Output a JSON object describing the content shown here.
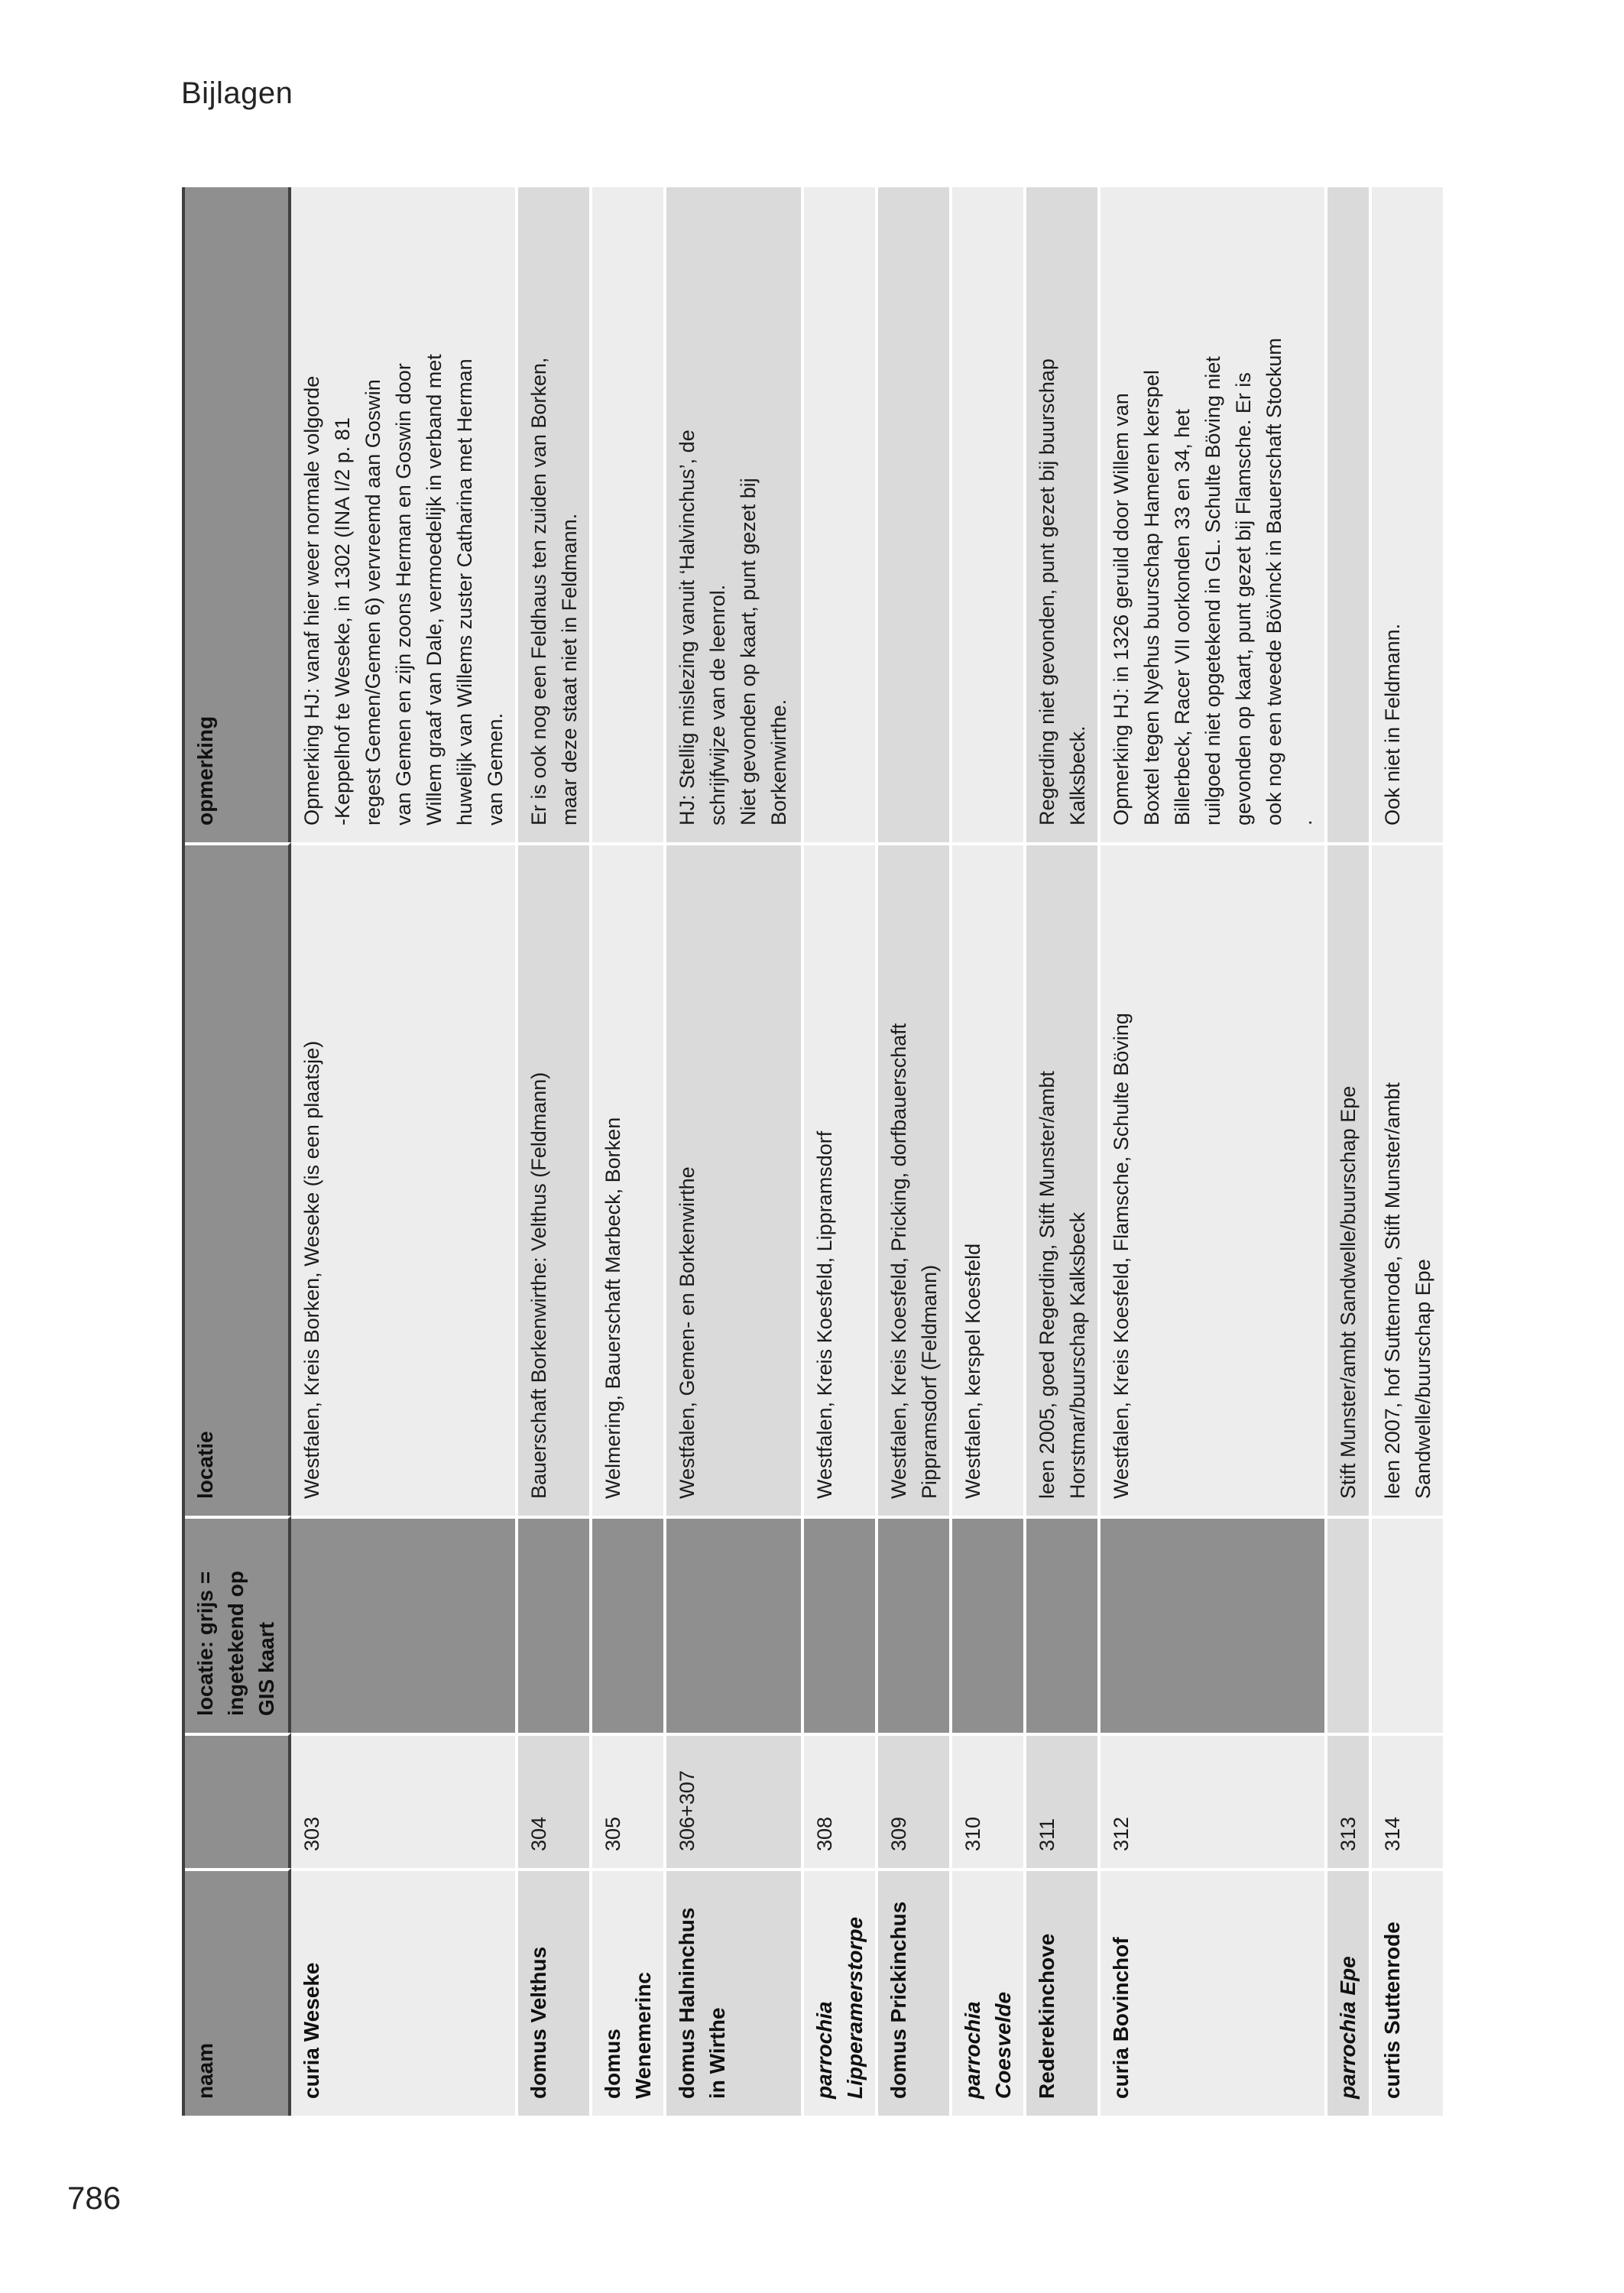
{
  "page": {
    "running_header": "Bijlagen",
    "page_number": "786"
  },
  "colors": {
    "header_and_gis_gray": "#8f8f8f",
    "naam_column_gray": "#bababa",
    "row_tint_light": "#ededed",
    "row_tint_dark": "#dadada",
    "rule_dark": "#3f3f3f"
  },
  "table": {
    "columns": {
      "naam": "naam",
      "nr": "",
      "gis": "locatie: grijs =\ningetekend op\nGIS kaart",
      "locatie": "locatie",
      "opmerking": "opmerking"
    },
    "rows": [
      {
        "naam": "curia Weseke",
        "naam_italic": false,
        "nr": "303",
        "gis_grijs": true,
        "locatie": "Westfalen, Kreis Borken, Weseke (is een plaatsje)",
        "opmerking": "Opmerking HJ: vanaf hier weer normale volgorde\n-Keppelhof te Weseke, in 1302 (INA I/2 p. 81\nregest Gemen/Gemen 6) vervreemd aan Goswin\nvan Gemen en zijn zoons Herman en Goswin door\nWillem graaf van Dale, vermoedelijk in verband met\nhuwelijk van Willems zuster Catharina met Herman\nvan Gemen."
      },
      {
        "naam": "domus Velthus",
        "naam_italic": false,
        "nr": "304",
        "gis_grijs": true,
        "locatie": "Bauerschaft Borkenwirthe: Velthus (Feldmann)",
        "opmerking": "Er is ook nog een Feldhaus ten zuiden van Borken,\nmaar deze staat niet in Feldmann."
      },
      {
        "naam": "domus\nWenemerinc",
        "naam_italic": false,
        "nr": "305",
        "gis_grijs": true,
        "locatie": "Welmering, Bauerschaft Marbeck, Borken",
        "opmerking": ""
      },
      {
        "naam": "domus Halninchus\nin Wirthe",
        "naam_italic": false,
        "nr": "306+307",
        "gis_grijs": true,
        "locatie": "Westfalen, Gemen- en Borkenwirthe",
        "opmerking": "HJ: Stellig mislezing vanuit ‘Halvinchus’, de\nschrijfwijze van de leenrol.\nNiet gevonden op kaart, punt gezet bij\nBorkenwirthe."
      },
      {
        "naam": "parrochia\nLipperamerstorpe",
        "naam_italic": true,
        "nr": "308",
        "gis_grijs": true,
        "locatie": "Westfalen, Kreis Koesfeld, Lippramsdorf",
        "opmerking": ""
      },
      {
        "naam": "domus Prickinchus",
        "naam_italic": false,
        "nr": "309",
        "gis_grijs": true,
        "locatie": "Westfalen, Kreis Koesfeld, Pricking, dorfbauerschaft\nPippramsdorf (Feldmann)",
        "opmerking": ""
      },
      {
        "naam": "parrochia\nCoesvelde",
        "naam_italic": true,
        "nr": "310",
        "gis_grijs": true,
        "locatie": "Westfalen, kerspel Koesfeld",
        "opmerking": ""
      },
      {
        "naam": "Rederekinchove",
        "naam_italic": false,
        "nr": "311",
        "gis_grijs": true,
        "locatie": "leen 2005, goed Regerding, Stift Munster/ambt\nHorstmar/buurschap Kalksbeck",
        "opmerking": "Regerding niet gevonden, punt gezet bij buurschap\nKalksbeck."
      },
      {
        "naam": "curia Bovinchof",
        "naam_italic": false,
        "nr": "312",
        "gis_grijs": true,
        "locatie": "Westfalen, Kreis Koesfeld, Flamsche, Schulte Böving",
        "opmerking": "Opmerking HJ: in 1326 geruild door Willem van\nBoxtel tegen Nyehus buurschap Hameren kerspel\nBillerbeck, Racer VII oorkonden 33 en 34, het\nruilgoed niet opgetekend in GL. Schulte Böving niet\ngevonden op kaart, punt gezet bij Flamsche. Er is\nook nog een tweede Bövinck in Bauerschaft Stockum\n."
      },
      {
        "naam": "parrochia Epe",
        "naam_italic": true,
        "nr": "313",
        "gis_grijs": false,
        "locatie": "Stift Munster/ambt Sandwelle/buurschap Epe",
        "opmerking": ""
      },
      {
        "naam": "curtis Suttenrode",
        "naam_italic": false,
        "nr": "314",
        "gis_grijs": false,
        "locatie": "leen 2007, hof Suttenrode, Stift Munster/ambt\nSandwelle/buurschap Epe",
        "opmerking": "Ook niet in Feldmann."
      }
    ]
  }
}
